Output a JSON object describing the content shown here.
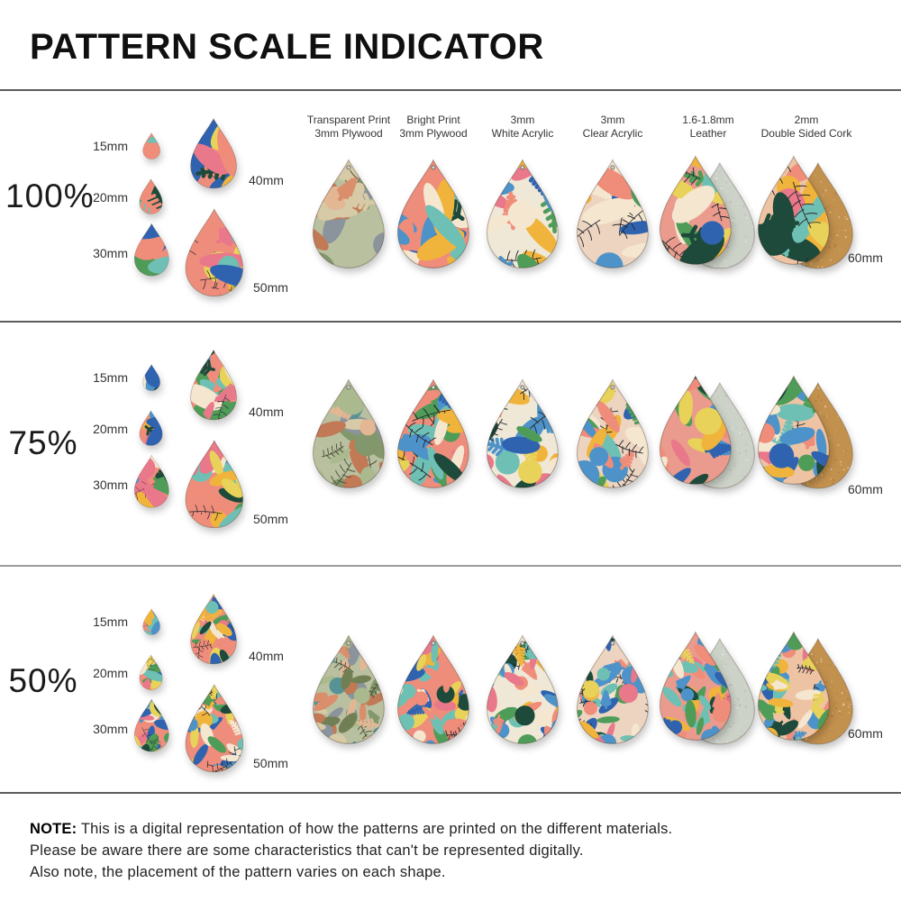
{
  "title": "PATTERN SCALE INDICATOR",
  "columns": [
    {
      "id": "transparent-plywood",
      "line1": "Transparent Print",
      "line2": "3mm Plywood"
    },
    {
      "id": "bright-plywood",
      "line1": "Bright Print",
      "line2": "3mm Plywood"
    },
    {
      "id": "white-acrylic",
      "line1": "3mm",
      "line2": "White Acrylic"
    },
    {
      "id": "clear-acrylic",
      "line1": "3mm",
      "line2": "Clear Acrylic"
    },
    {
      "id": "leather",
      "line1": "1.6-1.8mm",
      "line2": "Leather"
    },
    {
      "id": "cork",
      "line1": "2mm",
      "line2": "Double Sided Cork"
    }
  ],
  "rows": [
    {
      "scale_label": "100%",
      "pattern_scale": 1.0,
      "sizes": [
        "15mm",
        "20mm",
        "30mm",
        "40mm",
        "50mm"
      ],
      "sample_size_label": "60mm"
    },
    {
      "scale_label": "75%",
      "pattern_scale": 0.75,
      "sizes": [
        "15mm",
        "20mm",
        "30mm",
        "40mm",
        "50mm"
      ],
      "sample_size_label": "60mm"
    },
    {
      "scale_label": "50%",
      "pattern_scale": 0.5,
      "sizes": [
        "15mm",
        "20mm",
        "30mm",
        "40mm",
        "50mm"
      ],
      "sample_size_label": "60mm"
    }
  ],
  "note": {
    "label": "NOTE:",
    "lines": [
      "This is a digital representation of how the patterns are printed on the different materials.",
      "Please be aware there are some characteristics that can't be represented digitally.",
      "Also note, the placement of the pattern varies on each shape."
    ]
  },
  "palettes": {
    "bright": [
      "#ef8d7a",
      "#f0b43c",
      "#4f9c58",
      "#2f63b0",
      "#1d4a3a",
      "#f5e6d0",
      "#6fc0b4",
      "#e9788a",
      "#4d93c9",
      "#e8d25a"
    ],
    "muted": [
      "#de8a67",
      "#e6b793",
      "#4f8f96",
      "#6b7a4e",
      "#87909c",
      "#7d9467",
      "#d9cba6",
      "#c3744f",
      "#a9b98c"
    ]
  },
  "materials": {
    "transparent-plywood": {
      "base": "#b9c0a0",
      "palette": "muted",
      "twig": "#41452f",
      "opacity": 0.92
    },
    "bright-plywood": {
      "base": "#ee8d7c",
      "palette": "bright",
      "twig": "#27272c"
    },
    "white-acrylic": {
      "base": "#efe8d6",
      "palette": "bright",
      "twig": "#27272c"
    },
    "clear-acrylic": {
      "base": "#ecd4c0",
      "palette": "bright",
      "twig": "#27272c"
    },
    "leather": {
      "base": "#ea9b8d",
      "palette": "bright",
      "twig": "#27272c",
      "back": "#ccd2c8",
      "back_speckle": "#aab2a6"
    },
    "cork": {
      "base": "#eec3a4",
      "palette": "bright",
      "twig": "#27272c",
      "back": "#c3914e",
      "back_speckle": "#9e6f33"
    }
  }
}
